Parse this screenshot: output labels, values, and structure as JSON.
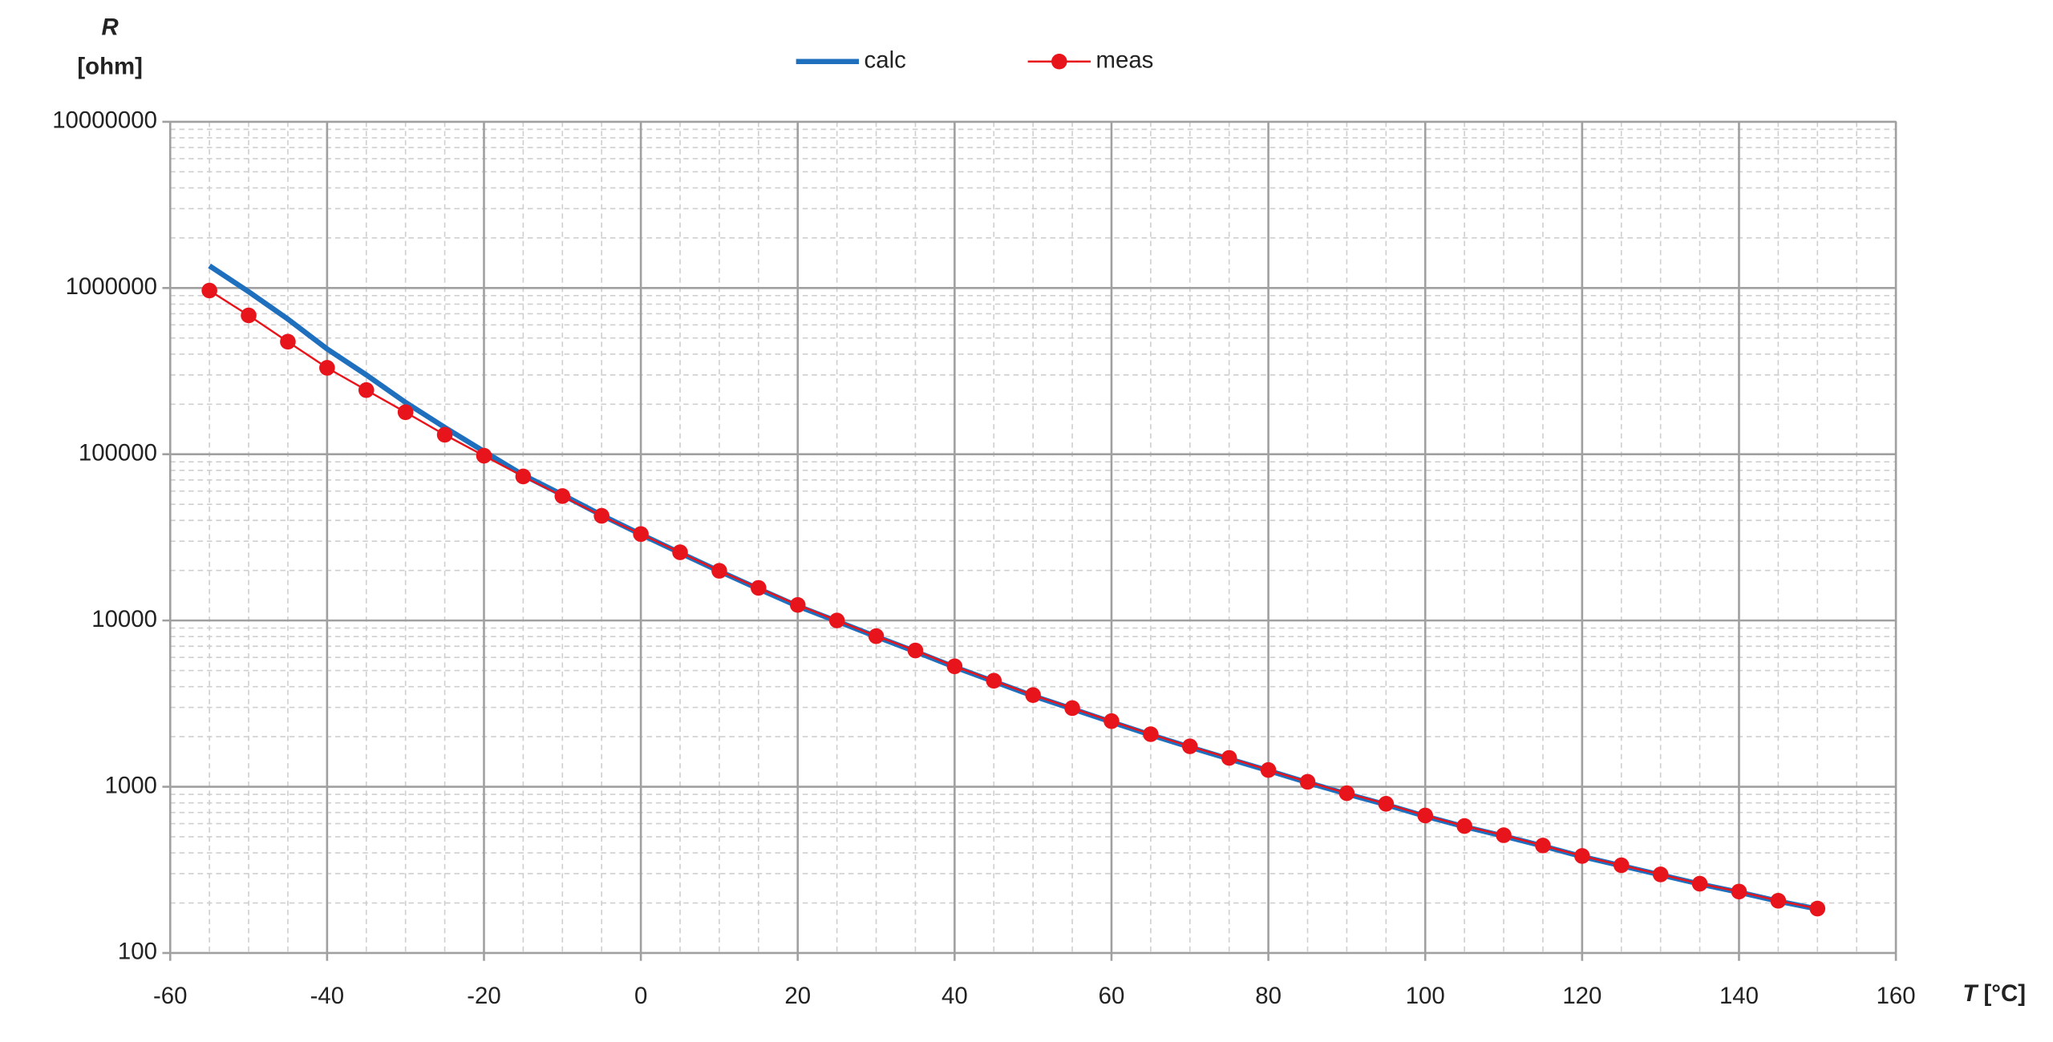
{
  "chart_data": {
    "type": "line",
    "ylabel_symbol": "R",
    "ylabel_unit": "[ohm]",
    "xlabel_symbol": "T",
    "xlabel_unit": "[°C]",
    "x": [
      -55,
      -50,
      -45,
      -40,
      -35,
      -30,
      -25,
      -20,
      -15,
      -10,
      -5,
      0,
      5,
      10,
      15,
      20,
      25,
      30,
      35,
      40,
      45,
      50,
      55,
      60,
      65,
      70,
      75,
      80,
      85,
      90,
      95,
      100,
      105,
      110,
      115,
      120,
      125,
      130,
      135,
      140,
      145,
      150
    ],
    "series": [
      {
        "name": "calc",
        "color": "#1f6fbf",
        "marker": false,
        "values": [
          1360000,
          950000,
          650000,
          430000,
          300000,
          205000,
          145000,
          104000,
          75000,
          57000,
          43000,
          33000,
          25500,
          19800,
          15500,
          12200,
          9900,
          8000,
          6500,
          5250,
          4300,
          3520,
          2940,
          2450,
          2050,
          1730,
          1470,
          1250,
          1060,
          905,
          780,
          665,
          575,
          505,
          440,
          380,
          335,
          295,
          260,
          232,
          205,
          184
        ]
      },
      {
        "name": "meas",
        "color": "#e8141b",
        "marker": true,
        "values": [
          965000,
          684000,
          475000,
          331000,
          243000,
          179000,
          131000,
          98000,
          73500,
          56000,
          42600,
          33100,
          25700,
          19900,
          15700,
          12400,
          10000,
          8050,
          6600,
          5300,
          4340,
          3560,
          2970,
          2480,
          2070,
          1750,
          1490,
          1260,
          1070,
          914,
          790,
          671,
          580,
          511,
          443,
          383,
          337,
          297,
          261,
          234,
          206,
          185
        ]
      }
    ],
    "xlim": [
      -60,
      160
    ],
    "xticks": [
      -60,
      -40,
      -20,
      0,
      20,
      40,
      60,
      80,
      100,
      120,
      140,
      160
    ],
    "x_minor_step": 5,
    "ylim": [
      100,
      10000000
    ],
    "yticks": [
      100,
      1000,
      10000,
      100000,
      1000000,
      10000000
    ],
    "ylog": true,
    "grid": true,
    "minor_grid": true,
    "legend": "top"
  }
}
